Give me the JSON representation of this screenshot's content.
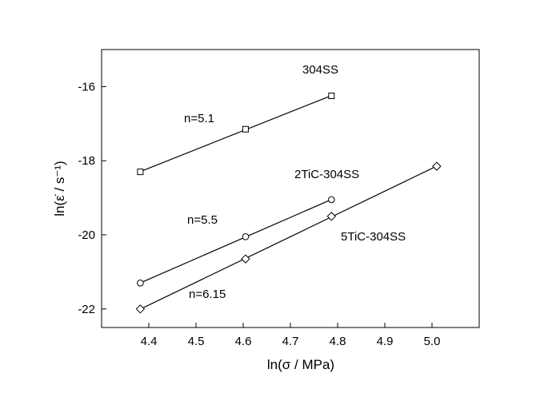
{
  "chart_data": {
    "type": "scatter",
    "title": "",
    "xlabel": "ln(σ / MPa)",
    "ylabel": "ln(ε̇ / s⁻¹)",
    "xlim": [
      4.3,
      5.1
    ],
    "ylim": [
      -22.5,
      -15.0
    ],
    "xticks": [
      4.4,
      4.5,
      4.6,
      4.7,
      4.8,
      4.9,
      5.0
    ],
    "yticks": [
      -22,
      -20,
      -18,
      -16
    ],
    "xtick_labels": [
      "4.4",
      "4.5",
      "4.6",
      "4.7",
      "4.8",
      "4.9",
      "5.0"
    ],
    "ytick_labels": [
      "-22",
      "-20",
      "-18",
      "-16"
    ],
    "grid": false,
    "legend": false,
    "series": [
      {
        "name": "304SS",
        "marker": "square",
        "x": [
          4.382,
          4.605,
          4.787
        ],
        "y": [
          -18.3,
          -17.15,
          -16.25
        ],
        "n_label": "n=5.1"
      },
      {
        "name": "2TiC-304SS",
        "marker": "circle",
        "x": [
          4.382,
          4.605,
          4.787
        ],
        "y": [
          -21.3,
          -20.05,
          -19.05
        ],
        "n_label": "n=5.5"
      },
      {
        "name": "5TiC-304SS",
        "marker": "diamond",
        "x": [
          4.382,
          4.605,
          4.787,
          5.01
        ],
        "y": [
          -22.0,
          -20.65,
          -19.5,
          -18.15
        ],
        "n_label": "n=6.15"
      }
    ]
  }
}
